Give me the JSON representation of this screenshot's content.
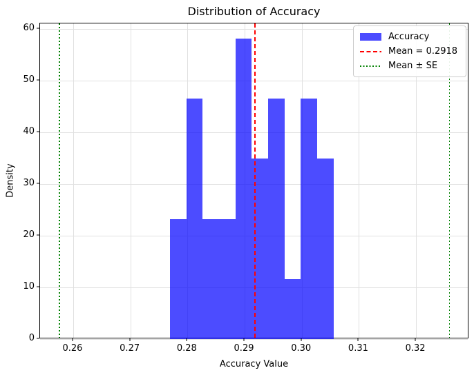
{
  "chart_data": {
    "type": "bar",
    "subtype": "histogram",
    "title": "Distribution of Accuracy",
    "xlabel": "Accuracy Value",
    "ylabel": "Density",
    "xlim": [
      0.2542,
      0.3293
    ],
    "ylim": [
      0,
      61.05
    ],
    "grid": true,
    "grid_color": "#e0e0e0",
    "xticks": [
      0.26,
      0.27,
      0.28,
      0.29,
      0.3,
      0.31,
      0.32
    ],
    "xtick_labels": [
      "0.26",
      "0.27",
      "0.28",
      "0.29",
      "0.30",
      "0.31",
      "0.32"
    ],
    "yticks": [
      0,
      10,
      20,
      30,
      40,
      50,
      60
    ],
    "ytick_labels": [
      "0",
      "10",
      "20",
      "30",
      "40",
      "50",
      "60"
    ],
    "histogram": {
      "bin_edges": [
        0.2769,
        0.2798,
        0.2826,
        0.2855,
        0.2884,
        0.2912,
        0.2941,
        0.297,
        0.2998,
        0.3027,
        0.3056
      ],
      "densities": [
        23.26,
        46.51,
        23.26,
        23.26,
        58.14,
        34.88,
        46.51,
        11.63,
        46.51,
        34.88
      ],
      "color": "#0000ff",
      "alpha": 0.7
    },
    "mean_line": {
      "x": 0.2918,
      "color": "#ff0000",
      "style": "dashed"
    },
    "se_lines": {
      "x": [
        0.2576,
        0.3259
      ],
      "color": "#008000",
      "style": "dotted"
    },
    "legend": {
      "position": "upper right",
      "items": [
        {
          "label": "Accuracy",
          "handle": "patch",
          "color": "#0000ff",
          "alpha": 0.7
        },
        {
          "label": "Mean = 0.2918",
          "handle": "dashed-line",
          "color": "#ff0000"
        },
        {
          "label": "Mean ± SE",
          "handle": "dotted-line",
          "color": "#008000"
        }
      ]
    }
  }
}
